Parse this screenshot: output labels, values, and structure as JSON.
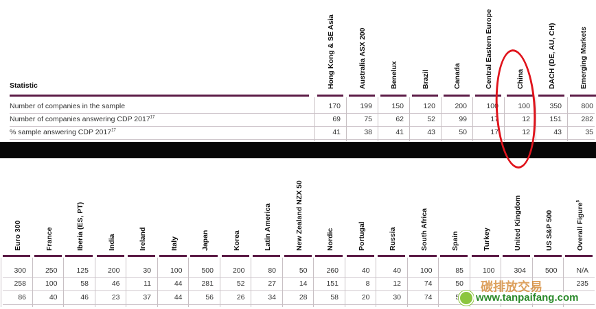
{
  "top_table": {
    "statistic_header": "Statistic",
    "columns": [
      "Hong Kong & SE Asia",
      "Australia ASX 200",
      "Benelux",
      "Brazil",
      "Canada",
      "Central Eastern Europe",
      "China",
      "DACH (DE, AU, CH)",
      "Emerging Markets"
    ],
    "rows": [
      {
        "label": "Number of companies in the sample",
        "sup": "",
        "values": [
          "170",
          "199",
          "150",
          "120",
          "200",
          "100",
          "100",
          "350",
          "800"
        ]
      },
      {
        "label": "Number of companies answering CDP 2017",
        "sup": "17",
        "values": [
          "69",
          "75",
          "62",
          "52",
          "99",
          "17",
          "12",
          "151",
          "282"
        ]
      },
      {
        "label": "% sample answering CDP 2017",
        "sup": "17",
        "values": [
          "41",
          "38",
          "41",
          "43",
          "50",
          "17",
          "12",
          "43",
          "35"
        ]
      }
    ]
  },
  "bottom_table": {
    "columns": [
      "Euro 300",
      "France",
      "Iberia (ES, PT)",
      "India",
      "Ireland",
      "Italy",
      "Japan",
      "Korea",
      "Latin America",
      "New Zealand NZX 50",
      "Nordic",
      "Portugal",
      "Russia",
      "South Africa",
      "Spain",
      "Turkey",
      "United Kingdom",
      "US S&P 500",
      "Overall Figure"
    ],
    "overall_sup": "5",
    "rows": [
      [
        "300",
        "250",
        "125",
        "200",
        "30",
        "100",
        "500",
        "200",
        "80",
        "50",
        "260",
        "40",
        "40",
        "100",
        "85",
        "100",
        "304",
        "500",
        "N/A"
      ],
      [
        "258",
        "100",
        "58",
        "46",
        "11",
        "44",
        "281",
        "52",
        "27",
        "14",
        "151",
        "8",
        "12",
        "74",
        "50",
        "",
        "",
        "",
        "235"
      ],
      [
        "86",
        "40",
        "46",
        "23",
        "37",
        "44",
        "56",
        "26",
        "34",
        "28",
        "58",
        "20",
        "30",
        "74",
        "50",
        "",
        "",
        "",
        ""
      ]
    ]
  },
  "annotation": {
    "color": "#e0141c",
    "label": "red-hand-drawn-circle"
  },
  "watermark": {
    "brand_cn": "碳排放交易",
    "url": "www.tanpaifang.com"
  }
}
